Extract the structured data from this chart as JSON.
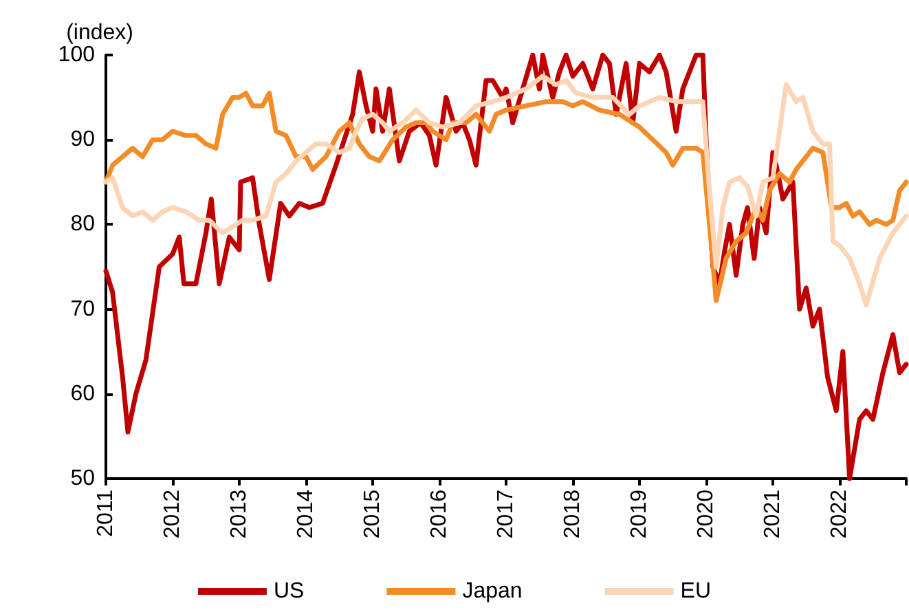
{
  "chart_data": {
    "type": "line",
    "ylabel": "(index)",
    "xlim": [
      2011,
      2023
    ],
    "xticks": [
      {
        "value": 2011,
        "label": "2011"
      },
      {
        "value": 2012,
        "label": "2012"
      },
      {
        "value": 2013,
        "label": "2013"
      },
      {
        "value": 2014,
        "label": "2014"
      },
      {
        "value": 2015,
        "label": "2015"
      },
      {
        "value": 2016,
        "label": "2016"
      },
      {
        "value": 2017,
        "label": "2017"
      },
      {
        "value": 2018,
        "label": "2018"
      },
      {
        "value": 2019,
        "label": "2019"
      },
      {
        "value": 2020,
        "label": "2020"
      },
      {
        "value": 2021,
        "label": "2021"
      },
      {
        "value": 2022,
        "label": "2022"
      },
      {
        "value": 2023,
        "label": null
      }
    ],
    "ylim": [
      50,
      100
    ],
    "yticks": [
      50,
      60,
      70,
      80,
      90,
      100
    ],
    "grid": false,
    "legend": "bottom",
    "marker": "none",
    "line_style": "solid",
    "series": [
      {
        "name": "US",
        "color": "#c00000",
        "x": [
          2011.0,
          2011.1,
          2011.25,
          2011.33,
          2011.45,
          2011.6,
          2011.8,
          2012.0,
          2012.1,
          2012.17,
          2012.35,
          2012.5,
          2012.58,
          2012.7,
          2012.85,
          2013.0,
          2013.02,
          2013.2,
          2013.3,
          2013.45,
          2013.62,
          2013.75,
          2013.9,
          2014.05,
          2014.25,
          2014.45,
          2014.7,
          2014.8,
          2014.9,
          2015.0,
          2015.05,
          2015.15,
          2015.25,
          2015.4,
          2015.55,
          2015.72,
          2015.85,
          2015.95,
          2016.1,
          2016.25,
          2016.35,
          2016.45,
          2016.55,
          2016.7,
          2016.8,
          2016.95,
          2017.0,
          2017.1,
          2017.25,
          2017.4,
          2017.5,
          2017.55,
          2017.7,
          2017.8,
          2017.9,
          2018.0,
          2018.15,
          2018.3,
          2018.45,
          2018.55,
          2018.65,
          2018.8,
          2018.9,
          2019.0,
          2019.15,
          2019.3,
          2019.4,
          2019.55,
          2019.65,
          2019.85,
          2019.95,
          2020.0,
          2020.1,
          2020.2,
          2020.28,
          2020.35,
          2020.45,
          2020.55,
          2020.62,
          2020.72,
          2020.8,
          2020.9,
          2021.0,
          2021.05,
          2021.15,
          2021.3,
          2021.4,
          2021.5,
          2021.6,
          2021.7,
          2021.82,
          2021.95,
          2022.05,
          2022.15,
          2022.3,
          2022.4,
          2022.5,
          2022.65,
          2022.8,
          2022.9,
          2023.0
        ],
        "values": [
          74.5,
          72,
          62,
          55.5,
          60,
          64,
          75,
          76.5,
          78.5,
          73,
          73,
          79,
          83,
          73,
          78.5,
          77,
          85,
          85.5,
          80,
          73.5,
          82.5,
          81,
          82.5,
          82,
          82.5,
          87,
          93,
          98,
          94,
          91,
          96,
          91,
          96,
          87.5,
          91,
          92,
          90.5,
          87,
          95,
          91,
          92,
          90,
          87,
          97,
          97,
          95,
          96,
          92,
          96,
          100,
          96,
          100,
          95,
          98,
          100,
          97.5,
          99,
          96,
          100,
          99,
          93,
          99,
          92,
          99,
          98,
          100,
          98,
          91,
          96,
          100,
          100,
          90,
          75,
          73,
          77,
          80,
          74,
          80,
          82,
          76,
          82,
          79,
          88.5,
          87,
          83,
          85,
          70,
          72.5,
          68,
          70,
          62,
          58,
          65,
          50,
          57,
          58,
          57,
          62.5,
          67,
          62.5,
          63.5
        ]
      },
      {
        "name": "Japan",
        "color": "#f28c28",
        "x": [
          2011.0,
          2011.1,
          2011.25,
          2011.4,
          2011.55,
          2011.7,
          2011.85,
          2012.0,
          2012.2,
          2012.35,
          2012.5,
          2012.65,
          2012.75,
          2012.9,
          2013.0,
          2013.1,
          2013.2,
          2013.35,
          2013.45,
          2013.55,
          2013.7,
          2013.85,
          2014.0,
          2014.1,
          2014.3,
          2014.5,
          2014.65,
          2014.8,
          2014.95,
          2015.1,
          2015.3,
          2015.5,
          2015.65,
          2015.8,
          2015.9,
          2016.1,
          2016.2,
          2016.4,
          2016.55,
          2016.75,
          2016.85,
          2017.0,
          2017.3,
          2017.6,
          2017.85,
          2018.0,
          2018.15,
          2018.4,
          2018.7,
          2019.0,
          2019.2,
          2019.4,
          2019.5,
          2019.65,
          2019.85,
          2019.95,
          2020.05,
          2020.15,
          2020.3,
          2020.45,
          2020.6,
          2020.75,
          2020.85,
          2020.95,
          2021.1,
          2021.25,
          2021.35,
          2021.5,
          2021.6,
          2021.75,
          2021.88,
          2022.0,
          2022.1,
          2022.2,
          2022.3,
          2022.45,
          2022.55,
          2022.7,
          2022.8,
          2022.9,
          2023.0
        ],
        "values": [
          85,
          87,
          88,
          89,
          88,
          90,
          90,
          91,
          90.5,
          90.5,
          89.5,
          89,
          93,
          95,
          95,
          95.5,
          94,
          94,
          95.5,
          91,
          90.5,
          88,
          88,
          86.5,
          88,
          91,
          92,
          89.5,
          88,
          87.5,
          90,
          91.5,
          92,
          92,
          91,
          90,
          92,
          92,
          93,
          91,
          93,
          93.5,
          94,
          94.5,
          94.5,
          94,
          94.5,
          93.5,
          93,
          91.5,
          90,
          88.5,
          87,
          89,
          89,
          88.5,
          80,
          71,
          76,
          78,
          79,
          82,
          80.5,
          84,
          86,
          85,
          86.5,
          88,
          89,
          88.5,
          82,
          82,
          82.5,
          81,
          81.5,
          80,
          80.5,
          80,
          80.5,
          84,
          85
        ]
      },
      {
        "name": "EU",
        "color": "#fbd5b5",
        "x": [
          2011.0,
          2011.1,
          2011.25,
          2011.4,
          2011.55,
          2011.7,
          2011.85,
          2012.0,
          2012.2,
          2012.4,
          2012.55,
          2012.75,
          2012.95,
          2013.05,
          2013.2,
          2013.4,
          2013.55,
          2013.7,
          2013.85,
          2014.0,
          2014.15,
          2014.3,
          2014.5,
          2014.65,
          2014.75,
          2014.85,
          2015.0,
          2015.15,
          2015.25,
          2015.45,
          2015.65,
          2015.85,
          2016.05,
          2016.3,
          2016.55,
          2016.8,
          2017.0,
          2017.3,
          2017.55,
          2017.75,
          2017.9,
          2018.05,
          2018.3,
          2018.6,
          2018.85,
          2019.0,
          2019.3,
          2019.55,
          2019.75,
          2019.95,
          2020.05,
          2020.15,
          2020.25,
          2020.35,
          2020.5,
          2020.62,
          2020.75,
          2020.85,
          2021.0,
          2021.1,
          2021.2,
          2021.35,
          2021.45,
          2021.6,
          2021.75,
          2021.85,
          2021.9,
          2022.0,
          2022.15,
          2022.3,
          2022.4,
          2022.6,
          2022.8,
          2023.0
        ],
        "values": [
          85,
          85.5,
          82,
          81,
          81.5,
          80.5,
          81.5,
          82,
          81.5,
          80.5,
          80.5,
          79,
          80,
          80.5,
          80.5,
          81,
          85,
          86,
          87.5,
          88.5,
          89.5,
          89.5,
          88.5,
          89,
          91,
          92.5,
          93,
          92,
          91,
          92,
          93.5,
          92,
          91.5,
          92,
          94,
          94.5,
          95,
          96,
          97.5,
          96.5,
          97,
          95.5,
          95,
          95,
          93,
          94,
          95,
          94.5,
          94.5,
          94.5,
          84,
          75,
          82,
          85,
          85.5,
          84.5,
          81,
          85,
          85.5,
          91,
          96.5,
          94.5,
          95,
          91,
          89.5,
          89.5,
          78,
          77.5,
          76,
          73,
          70.5,
          76,
          79,
          81
        ]
      }
    ]
  }
}
